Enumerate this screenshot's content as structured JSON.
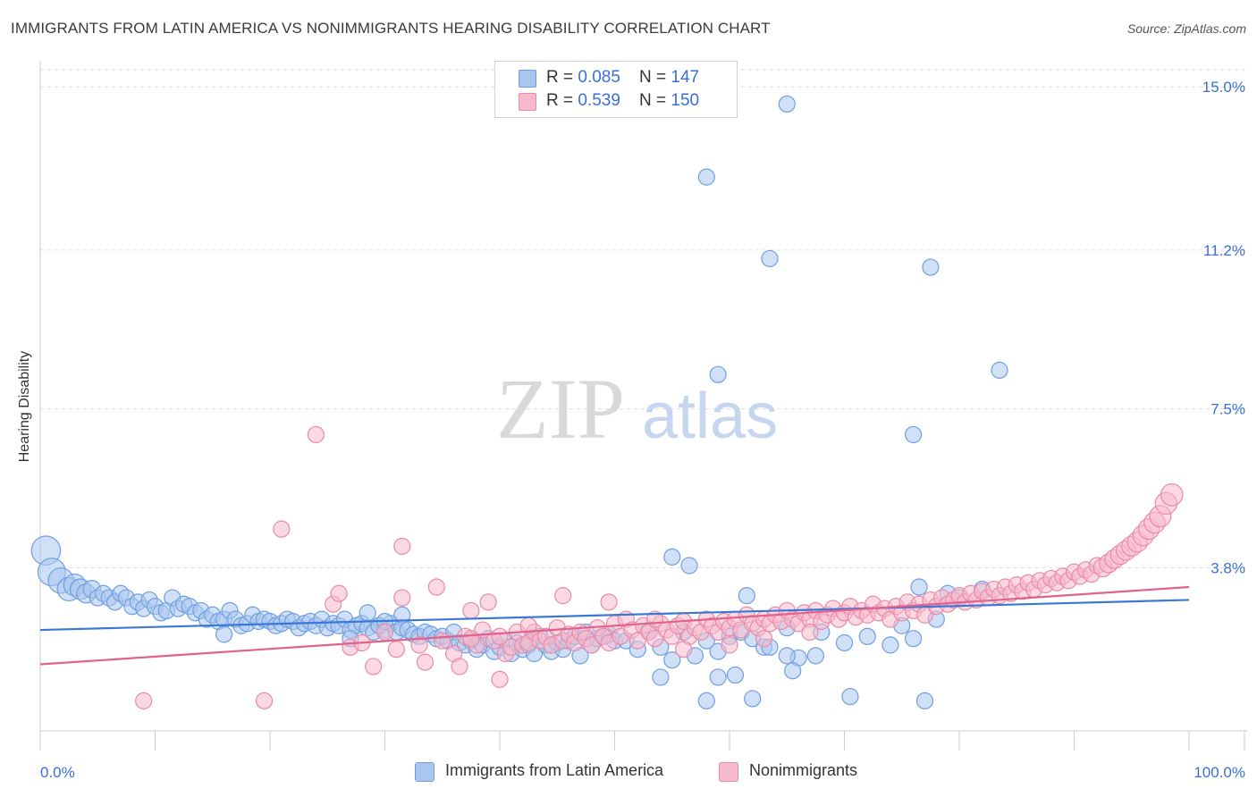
{
  "title": "IMMIGRANTS FROM LATIN AMERICA VS NONIMMIGRANTS HEARING DISABILITY CORRELATION CHART",
  "source": "Source: ZipAtlas.com",
  "watermark": {
    "zip": "ZIP",
    "atlas": "atlas"
  },
  "legend": {
    "rows": [
      {
        "r_label": "R = ",
        "r_value": "0.085",
        "n_label": "N = ",
        "n_value": "147",
        "color": "#a9c6ef",
        "border": "#6f9fe0"
      },
      {
        "r_label": "R = ",
        "r_value": "0.539",
        "n_label": "N = ",
        "n_value": "150",
        "color": "#f7b9cc",
        "border": "#e98aa8"
      }
    ]
  },
  "bottom_legend": [
    {
      "label": "Immigrants from Latin America",
      "color": "#a9c6ef",
      "border": "#6f9fe0"
    },
    {
      "label": "Nonimmigrants",
      "color": "#f7b9cc",
      "border": "#e98aa8"
    }
  ],
  "chart_data": {
    "type": "scatter",
    "title": "IMMIGRANTS FROM LATIN AMERICA VS NONIMMIGRANTS HEARING DISABILITY CORRELATION CHART",
    "xlabel": "",
    "ylabel": "Hearing Disability",
    "xlim": [
      0,
      100
    ],
    "ylim": [
      0,
      15.4
    ],
    "x_tick_labels": [
      "0.0%",
      "100.0%"
    ],
    "y_ticks": [
      3.8,
      7.5,
      11.2,
      15.0
    ],
    "y_tick_labels": [
      "3.8%",
      "7.5%",
      "11.2%",
      "15.0%"
    ],
    "grid": "horizontal dashed",
    "legend_position": "top-center",
    "series": [
      {
        "name": "Immigrants from Latin America",
        "color": "#a9c6ef",
        "stroke": "#6f9fe0",
        "trend": {
          "x": [
            0,
            100
          ],
          "y": [
            2.35,
            3.05
          ],
          "color": "#3a78d8"
        },
        "points": [
          [
            0.5,
            4.2
          ],
          [
            1,
            3.7
          ],
          [
            1.8,
            3.5
          ],
          [
            2.5,
            3.3
          ],
          [
            3,
            3.4
          ],
          [
            3.5,
            3.3
          ],
          [
            4,
            3.2
          ],
          [
            4.5,
            3.3
          ],
          [
            5,
            3.1
          ],
          [
            5.5,
            3.2
          ],
          [
            6,
            3.1
          ],
          [
            6.5,
            3.0
          ],
          [
            7,
            3.2
          ],
          [
            7.5,
            3.1
          ],
          [
            8,
            2.9
          ],
          [
            8.5,
            3.0
          ],
          [
            9,
            2.85
          ],
          [
            9.5,
            3.05
          ],
          [
            10,
            2.9
          ],
          [
            10.5,
            2.75
          ],
          [
            11,
            2.8
          ],
          [
            11.5,
            3.1
          ],
          [
            12,
            2.85
          ],
          [
            12.5,
            2.95
          ],
          [
            13,
            2.9
          ],
          [
            13.5,
            2.75
          ],
          [
            14,
            2.8
          ],
          [
            14.5,
            2.6
          ],
          [
            15,
            2.7
          ],
          [
            15.5,
            2.55
          ],
          [
            16,
            2.6
          ],
          [
            16.5,
            2.8
          ],
          [
            17,
            2.6
          ],
          [
            17.5,
            2.45
          ],
          [
            18,
            2.5
          ],
          [
            18.5,
            2.7
          ],
          [
            19,
            2.55
          ],
          [
            19.5,
            2.6
          ],
          [
            20,
            2.55
          ],
          [
            20.5,
            2.45
          ],
          [
            21,
            2.5
          ],
          [
            21.5,
            2.6
          ],
          [
            22,
            2.55
          ],
          [
            22.5,
            2.4
          ],
          [
            23,
            2.5
          ],
          [
            23.5,
            2.55
          ],
          [
            24,
            2.45
          ],
          [
            24.5,
            2.6
          ],
          [
            25,
            2.4
          ],
          [
            25.5,
            2.5
          ],
          [
            26,
            2.45
          ],
          [
            26.5,
            2.6
          ],
          [
            27,
            2.35
          ],
          [
            27.5,
            2.45
          ],
          [
            28,
            2.5
          ],
          [
            28.5,
            2.4
          ],
          [
            29,
            2.3
          ],
          [
            29.5,
            2.45
          ],
          [
            30,
            2.35
          ],
          [
            30.5,
            2.5
          ],
          [
            31,
            2.3
          ],
          [
            31.5,
            2.4
          ],
          [
            32,
            2.35
          ],
          [
            32.5,
            2.25
          ],
          [
            33,
            2.2
          ],
          [
            33.5,
            2.3
          ],
          [
            34,
            2.25
          ],
          [
            34.5,
            2.15
          ],
          [
            35,
            2.2
          ],
          [
            35.5,
            2.1
          ],
          [
            36,
            2.3
          ],
          [
            36.5,
            2.05
          ],
          [
            37,
            2.0
          ],
          [
            37.5,
            2.1
          ],
          [
            38,
            1.9
          ],
          [
            38.5,
            2.0
          ],
          [
            39,
            2.15
          ],
          [
            39.5,
            1.85
          ],
          [
            40,
            1.95
          ],
          [
            40.5,
            2.1
          ],
          [
            41,
            1.8
          ],
          [
            41.5,
            2.05
          ],
          [
            42,
            1.9
          ],
          [
            42.5,
            2.0
          ],
          [
            43,
            1.8
          ],
          [
            43.5,
            2.2
          ],
          [
            44,
            2.0
          ],
          [
            44.5,
            1.85
          ],
          [
            45,
            2.05
          ],
          [
            45.5,
            1.9
          ],
          [
            46,
            2.1
          ],
          [
            46.5,
            2.2
          ],
          [
            47,
            1.75
          ],
          [
            47.5,
            2.3
          ],
          [
            48,
            2.0
          ],
          [
            48.5,
            2.15
          ],
          [
            49,
            2.2
          ],
          [
            49.5,
            2.25
          ],
          [
            50,
            2.1
          ],
          [
            51,
            2.1
          ],
          [
            52,
            1.9
          ],
          [
            53,
            2.35
          ],
          [
            54,
            1.95
          ],
          [
            55,
            1.65
          ],
          [
            56,
            2.3
          ],
          [
            57,
            1.75
          ],
          [
            58,
            2.1
          ],
          [
            59,
            1.85
          ],
          [
            60,
            2.2
          ],
          [
            61,
            2.3
          ],
          [
            62,
            2.15
          ],
          [
            63,
            1.95
          ],
          [
            65,
            2.4
          ],
          [
            66,
            1.7
          ],
          [
            68,
            2.3
          ],
          [
            70,
            2.05
          ],
          [
            72,
            2.2
          ],
          [
            74,
            2.0
          ],
          [
            75,
            2.45
          ],
          [
            76,
            2.15
          ],
          [
            28.5,
            2.75
          ],
          [
            29.5,
            2.45
          ],
          [
            30,
            2.55
          ],
          [
            31.5,
            2.7
          ],
          [
            16,
            2.25
          ],
          [
            27,
            2.15
          ],
          [
            55.0,
            4.05
          ],
          [
            56.5,
            3.85
          ],
          [
            61.5,
            3.15
          ],
          [
            63.5,
            1.95
          ],
          [
            65.5,
            1.4
          ],
          [
            67.5,
            1.75
          ],
          [
            70.5,
            0.8
          ],
          [
            76.5,
            3.35
          ],
          [
            77,
            0.7
          ],
          [
            78,
            2.6
          ],
          [
            79,
            3.2
          ],
          [
            80,
            3.1
          ],
          [
            54,
            1.25
          ],
          [
            59,
            1.25
          ],
          [
            82,
            3.3
          ],
          [
            58,
            0.7
          ],
          [
            60.5,
            1.3
          ],
          [
            62,
            0.75
          ],
          [
            65,
            1.75
          ],
          [
            58.0,
            12.9
          ],
          [
            63.5,
            11.0
          ],
          [
            59.0,
            8.3
          ],
          [
            65.0,
            14.6
          ],
          [
            77.5,
            10.8
          ],
          [
            83.5,
            8.4
          ],
          [
            76.0,
            6.9
          ]
        ]
      },
      {
        "name": "Nonimmigrants",
        "color": "#f7b9cc",
        "stroke": "#e98aa8",
        "trend": {
          "x": [
            0,
            100
          ],
          "y": [
            1.55,
            3.35
          ],
          "color": "#e0628d"
        },
        "points": [
          [
            9,
            0.7
          ],
          [
            19.5,
            0.7
          ],
          [
            21,
            4.7
          ],
          [
            24,
            6.9
          ],
          [
            27,
            1.95
          ],
          [
            28,
            2.05
          ],
          [
            29,
            1.5
          ],
          [
            30,
            2.3
          ],
          [
            31,
            1.9
          ],
          [
            31.5,
            4.3
          ],
          [
            33,
            2.0
          ],
          [
            33.5,
            1.6
          ],
          [
            35,
            2.1
          ],
          [
            36,
            1.8
          ],
          [
            36.5,
            1.5
          ],
          [
            37,
            2.2
          ],
          [
            37.5,
            2.8
          ],
          [
            38,
            2.0
          ],
          [
            38.5,
            2.35
          ],
          [
            39,
            3.0
          ],
          [
            39.5,
            2.1
          ],
          [
            40,
            2.2
          ],
          [
            40.5,
            1.8
          ],
          [
            41,
            1.95
          ],
          [
            41.5,
            2.3
          ],
          [
            42,
            2.0
          ],
          [
            42.5,
            2.05
          ],
          [
            43,
            2.3
          ],
          [
            43.5,
            2.1
          ],
          [
            44,
            2.2
          ],
          [
            44.5,
            2.0
          ],
          [
            45,
            2.4
          ],
          [
            45.5,
            2.1
          ],
          [
            46,
            2.25
          ],
          [
            46.5,
            2.05
          ],
          [
            47,
            2.3
          ],
          [
            47.5,
            2.15
          ],
          [
            48,
            2.0
          ],
          [
            48.5,
            2.4
          ],
          [
            49,
            2.2
          ],
          [
            49.5,
            2.05
          ],
          [
            50,
            2.5
          ],
          [
            50.5,
            2.2
          ],
          [
            51,
            2.6
          ],
          [
            51.5,
            2.35
          ],
          [
            52,
            2.1
          ],
          [
            52.5,
            2.45
          ],
          [
            53,
            2.3
          ],
          [
            53.5,
            2.15
          ],
          [
            54,
            2.5
          ],
          [
            54.5,
            2.35
          ],
          [
            55,
            2.2
          ],
          [
            55.5,
            2.45
          ],
          [
            56,
            2.55
          ],
          [
            56.5,
            2.2
          ],
          [
            57,
            2.4
          ],
          [
            57.5,
            2.3
          ],
          [
            58,
            2.6
          ],
          [
            58.5,
            2.45
          ],
          [
            59,
            2.3
          ],
          [
            59.5,
            2.55
          ],
          [
            60,
            2.4
          ],
          [
            60.5,
            2.6
          ],
          [
            61,
            2.35
          ],
          [
            61.5,
            2.7
          ],
          [
            62,
            2.5
          ],
          [
            62.5,
            2.4
          ],
          [
            63,
            2.6
          ],
          [
            63.5,
            2.5
          ],
          [
            64,
            2.7
          ],
          [
            64.5,
            2.55
          ],
          [
            65,
            2.8
          ],
          [
            65.5,
            2.6
          ],
          [
            66,
            2.5
          ],
          [
            66.5,
            2.75
          ],
          [
            67,
            2.6
          ],
          [
            67.5,
            2.8
          ],
          [
            68,
            2.55
          ],
          [
            68.5,
            2.7
          ],
          [
            69,
            2.85
          ],
          [
            69.5,
            2.6
          ],
          [
            70,
            2.75
          ],
          [
            70.5,
            2.9
          ],
          [
            71,
            2.65
          ],
          [
            71.5,
            2.8
          ],
          [
            72,
            2.7
          ],
          [
            72.5,
            2.95
          ],
          [
            73,
            2.75
          ],
          [
            73.5,
            2.85
          ],
          [
            74,
            2.6
          ],
          [
            74.5,
            2.9
          ],
          [
            75,
            2.75
          ],
          [
            75.5,
            3.0
          ],
          [
            76,
            2.8
          ],
          [
            76.5,
            2.95
          ],
          [
            77,
            2.7
          ],
          [
            77.5,
            3.05
          ],
          [
            78,
            2.9
          ],
          [
            78.5,
            3.1
          ],
          [
            79,
            2.95
          ],
          [
            79.5,
            3.05
          ],
          [
            80,
            3.15
          ],
          [
            80.5,
            3.0
          ],
          [
            81,
            3.2
          ],
          [
            81.5,
            3.05
          ],
          [
            82,
            3.25
          ],
          [
            82.5,
            3.1
          ],
          [
            83,
            3.3
          ],
          [
            83.5,
            3.15
          ],
          [
            84,
            3.35
          ],
          [
            84.5,
            3.2
          ],
          [
            85,
            3.4
          ],
          [
            85.5,
            3.25
          ],
          [
            86,
            3.45
          ],
          [
            86.5,
            3.3
          ],
          [
            87,
            3.5
          ],
          [
            87.5,
            3.4
          ],
          [
            88,
            3.55
          ],
          [
            88.5,
            3.45
          ],
          [
            89,
            3.6
          ],
          [
            89.5,
            3.5
          ],
          [
            90,
            3.7
          ],
          [
            90.5,
            3.6
          ],
          [
            91,
            3.75
          ],
          [
            91.5,
            3.65
          ],
          [
            92,
            3.85
          ],
          [
            92.5,
            3.8
          ],
          [
            93,
            3.9
          ],
          [
            93.5,
            4.0
          ],
          [
            94,
            4.1
          ],
          [
            94.5,
            4.2
          ],
          [
            95,
            4.3
          ],
          [
            95.5,
            4.4
          ],
          [
            96,
            4.55
          ],
          [
            96.5,
            4.7
          ],
          [
            97,
            4.85
          ],
          [
            97.5,
            5.0
          ],
          [
            98,
            5.3
          ],
          [
            98.5,
            5.5
          ],
          [
            25.5,
            2.95
          ],
          [
            26,
            3.2
          ],
          [
            31.5,
            3.1
          ],
          [
            34.5,
            3.35
          ],
          [
            37.5,
            2.15
          ],
          [
            40.0,
            1.2
          ],
          [
            42.5,
            2.45
          ],
          [
            45.5,
            3.15
          ],
          [
            49.5,
            3.0
          ],
          [
            53.5,
            2.6
          ],
          [
            56.0,
            1.9
          ],
          [
            60.0,
            2.0
          ],
          [
            63.0,
            2.15
          ],
          [
            67.0,
            2.3
          ]
        ]
      }
    ]
  }
}
